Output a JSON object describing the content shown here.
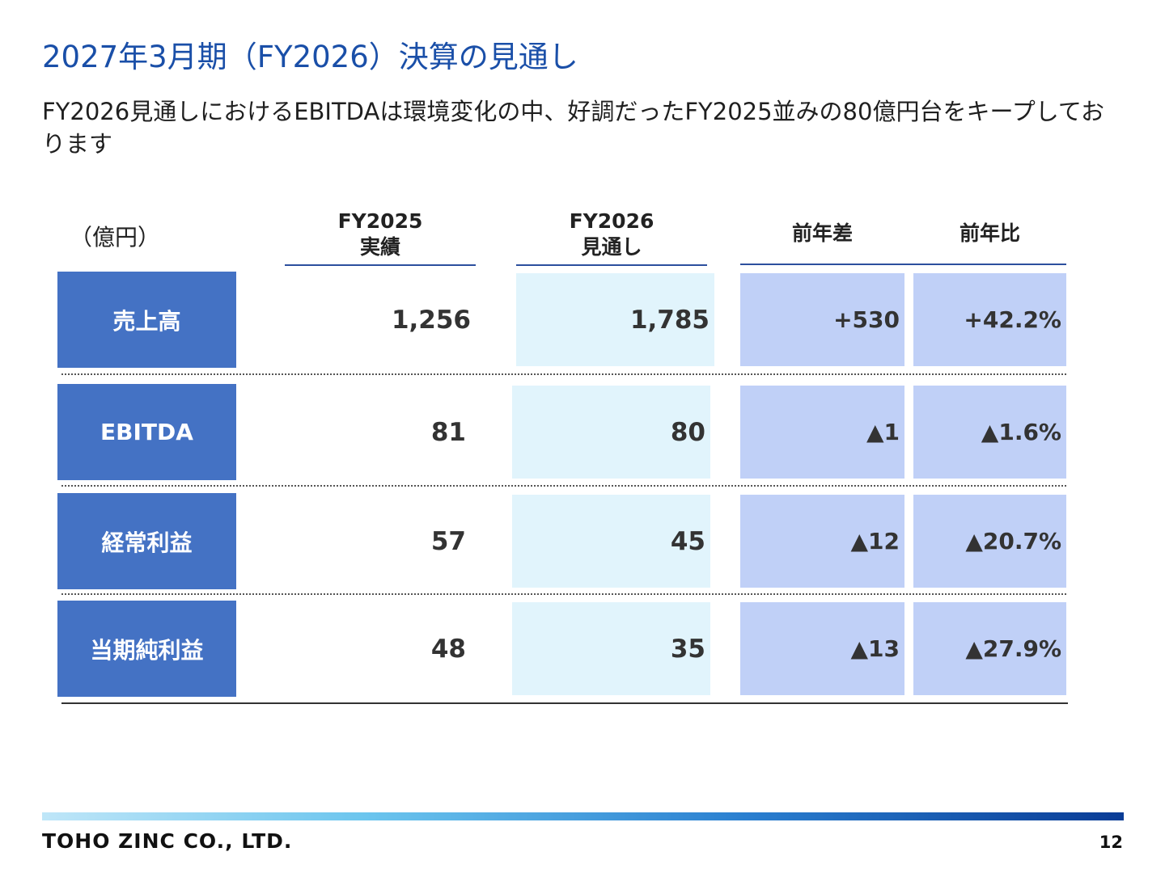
{
  "title": "2027年3月期（FY2026）決算の見通し",
  "subtitle": "FY2026見通しにおけるEBITDAは環境変化の中、好調だったFY2025並みの80億円台をキープしております",
  "unit": "（億円）",
  "columns": {
    "fy2025": [
      "FY2025",
      "実績"
    ],
    "fy2026": [
      "FY2026",
      "見通し"
    ],
    "diff": "前年差",
    "ratio": "前年比"
  },
  "rows": [
    {
      "label": "売上高",
      "fy2025": "1,256",
      "fy2026": "1,785",
      "diff": "+530",
      "ratio": "+42.2%"
    },
    {
      "label": "EBITDA",
      "fy2025": "81",
      "fy2026": "80",
      "diff": "▲1",
      "ratio": "▲1.6%"
    },
    {
      "label": "経常利益",
      "fy2025": "57",
      "fy2026": "45",
      "diff": "▲12",
      "ratio": "▲20.7%"
    },
    {
      "label": "当期純利益",
      "fy2025": "48",
      "fy2026": "35",
      "diff": "▲13",
      "ratio": "▲27.9%"
    }
  ],
  "footer": {
    "company": "TOHO ZINC CO., LTD.",
    "page": "12"
  },
  "colors": {
    "title": "#1a4fa8",
    "label_bg": "#4472c4",
    "forecast_bg": "#e1f4fc",
    "diff_bg": "#c0d0f7"
  }
}
